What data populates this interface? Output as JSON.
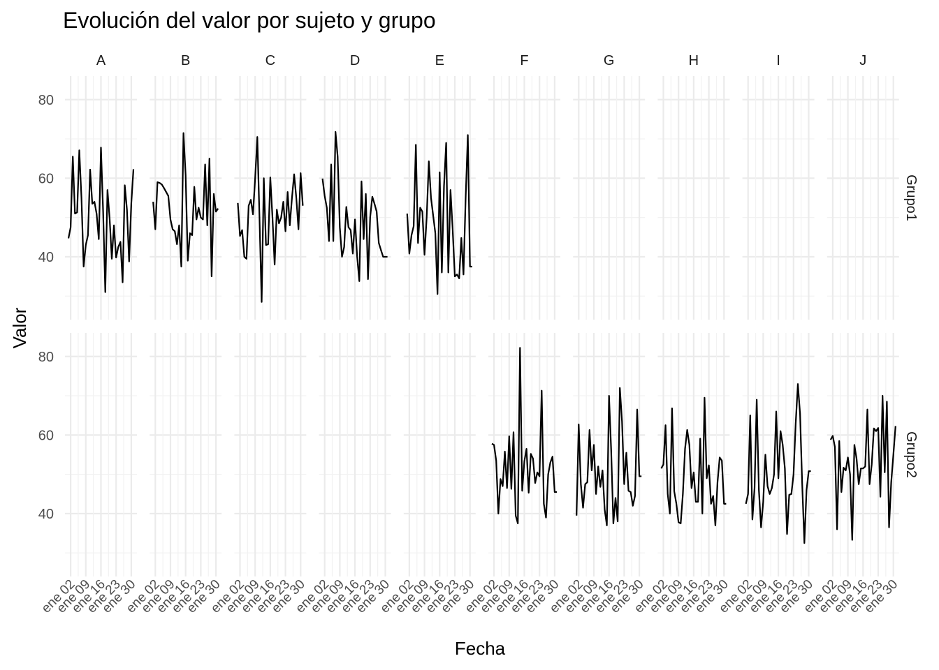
{
  "chart_data": {
    "type": "line",
    "title": "Evolución del valor por sujeto y grupo",
    "xlabel": "Fecha",
    "ylabel": "Valor",
    "facets": {
      "columns": [
        "A",
        "B",
        "C",
        "D",
        "E",
        "F",
        "G",
        "H",
        "I",
        "J"
      ],
      "rows": [
        "Grupo1",
        "Grupo2"
      ]
    },
    "x_range": [
      "ene 01",
      "ene 31"
    ],
    "x_tick_labels": [
      "ene 02",
      "ene 09",
      "ene 16",
      "ene 23",
      "ene 30"
    ],
    "x_tick_days": [
      2,
      9,
      16,
      23,
      30
    ],
    "ylim": [
      24,
      86
    ],
    "y_ticks": [
      40,
      60,
      80
    ],
    "grid": true,
    "legend": "none",
    "series": [
      {
        "subject": "A",
        "group": "Grupo1",
        "x_days": [
          1,
          2,
          3,
          4,
          5,
          6,
          7,
          8,
          9,
          10,
          11,
          12,
          13,
          14,
          15,
          16,
          17,
          18,
          19,
          20,
          21,
          22,
          23,
          24,
          25,
          26,
          27,
          28,
          29,
          30,
          31
        ],
        "values": [
          44.7,
          47.5,
          65.5,
          51,
          51.3,
          67.1,
          55,
          37.5,
          43,
          45.5,
          62.2,
          53.5,
          54,
          50.9,
          44.5,
          67.8,
          51.5,
          31,
          57,
          49.8,
          39.5,
          48,
          39.8,
          42.5,
          43.8,
          33.5,
          58.2,
          52,
          38.8,
          53.5,
          62.3
        ]
      },
      {
        "subject": "B",
        "group": "Grupo1",
        "x_days": [
          1,
          2,
          3,
          4,
          5,
          6,
          7,
          8,
          9,
          10,
          11,
          12,
          13,
          14,
          15,
          16,
          17,
          18,
          19,
          20,
          21,
          22,
          23,
          24,
          25,
          26,
          27,
          28,
          29,
          30,
          31
        ],
        "values": [
          54,
          47,
          59,
          58.8,
          58.4,
          57.5,
          56.5,
          55.5,
          49.5,
          47,
          46.5,
          43.2,
          48,
          37.5,
          71.5,
          60.8,
          39,
          46,
          45.5,
          57.8,
          49.5,
          52.5,
          50,
          49.5,
          63.5,
          48,
          65,
          35,
          56,
          51.5,
          52.3
        ]
      },
      {
        "subject": "C",
        "group": "Grupo1",
        "x_days": [
          1,
          2,
          3,
          4,
          5,
          6,
          7,
          8,
          9,
          10,
          11,
          12,
          13,
          14,
          15,
          16,
          17,
          18,
          19,
          20,
          21,
          22,
          23,
          24,
          25,
          26,
          27,
          28,
          29,
          30,
          31
        ],
        "values": [
          53.7,
          45.3,
          46.8,
          40,
          39.5,
          53,
          54.5,
          50.8,
          60,
          70.5,
          50,
          28.5,
          60,
          43,
          43.2,
          60.2,
          50,
          38,
          52,
          48.5,
          50,
          54,
          46.5,
          56.5,
          48,
          55,
          61,
          55,
          47,
          61.3,
          53
        ]
      },
      {
        "subject": "D",
        "group": "Grupo1",
        "x_days": [
          1,
          2,
          3,
          4,
          5,
          6,
          7,
          8,
          9,
          10,
          11,
          12,
          13,
          14,
          15,
          16,
          17,
          18,
          19,
          20,
          21,
          22,
          23,
          24,
          25,
          26,
          27,
          28,
          29,
          30,
          31
        ],
        "values": [
          59.9,
          55.5,
          52.5,
          44,
          63.5,
          44,
          71.8,
          65.5,
          47.5,
          40,
          42.5,
          52.7,
          47.5,
          46.8,
          40.8,
          49.5,
          40,
          33.8,
          59.2,
          44.5,
          56,
          34.3,
          50,
          55.3,
          53.5,
          51.5,
          43.5,
          41.7,
          40,
          40,
          40
        ]
      },
      {
        "subject": "E",
        "group": "Grupo1",
        "x_days": [
          1,
          2,
          3,
          4,
          5,
          6,
          7,
          8,
          9,
          10,
          11,
          12,
          13,
          14,
          15,
          16,
          17,
          18,
          19,
          20,
          21,
          22,
          23,
          24,
          25,
          26,
          27,
          28,
          29,
          30,
          31
        ],
        "values": [
          51,
          40.8,
          45.5,
          47.8,
          68.5,
          43.5,
          52.5,
          51.5,
          40.5,
          50,
          64.3,
          55,
          50.5,
          46,
          30.5,
          61.5,
          36,
          58,
          69,
          36,
          57,
          47,
          35,
          35.5,
          34.5,
          44.8,
          35.5,
          55,
          71,
          37.5,
          37.5
        ]
      },
      {
        "subject": "F",
        "group": "Grupo2",
        "x_days": [
          1,
          2,
          3,
          4,
          5,
          6,
          7,
          8,
          9,
          10,
          11,
          12,
          13,
          14,
          15,
          16,
          17,
          18,
          19,
          20,
          21,
          22,
          23,
          24,
          25,
          26,
          27,
          28,
          29,
          30,
          31
        ],
        "values": [
          57.8,
          57.5,
          53.5,
          40,
          48.8,
          47,
          55.8,
          46.5,
          59.7,
          46.3,
          60.7,
          39.5,
          37.5,
          82.2,
          45.8,
          53.3,
          56.5,
          45.3,
          55.2,
          54,
          47.8,
          50.5,
          49.5,
          71.3,
          42.5,
          39,
          50,
          53,
          54.5,
          45.5,
          45.5
        ]
      },
      {
        "subject": "G",
        "group": "Grupo2",
        "x_days": [
          1,
          2,
          3,
          4,
          5,
          6,
          7,
          8,
          9,
          10,
          11,
          12,
          13,
          14,
          15,
          16,
          17,
          18,
          19,
          20,
          21,
          22,
          23,
          24,
          25,
          26,
          27,
          28,
          29,
          30,
          31
        ],
        "values": [
          39.5,
          62.7,
          47.5,
          41.5,
          47.5,
          48,
          61.3,
          51,
          57.5,
          45,
          52,
          46.8,
          51,
          41,
          37,
          70,
          56,
          37.5,
          44,
          38,
          72,
          63.5,
          47.5,
          55.5,
          45.8,
          45.5,
          42,
          44.5,
          66.5,
          49.5,
          49.5
        ]
      },
      {
        "subject": "H",
        "group": "Grupo2",
        "x_days": [
          1,
          2,
          3,
          4,
          5,
          6,
          7,
          8,
          9,
          10,
          11,
          12,
          13,
          14,
          15,
          16,
          17,
          18,
          19,
          20,
          21,
          22,
          23,
          24,
          25,
          26,
          27,
          28,
          29,
          30,
          31
        ],
        "values": [
          51.5,
          52.5,
          62.5,
          45,
          40,
          66.8,
          45.7,
          42.5,
          37.8,
          37.5,
          45,
          56.5,
          61.3,
          57.5,
          46.5,
          50.5,
          43,
          43,
          59.1,
          40,
          69.5,
          49,
          52.3,
          42.5,
          44.5,
          37,
          48,
          54.3,
          53.5,
          42.5,
          42.5
        ]
      },
      {
        "subject": "I",
        "group": "Grupo2",
        "x_days": [
          1,
          2,
          3,
          4,
          5,
          6,
          7,
          8,
          9,
          10,
          11,
          12,
          13,
          14,
          15,
          16,
          17,
          18,
          19,
          20,
          21,
          22,
          23,
          24,
          25,
          26,
          27,
          28,
          29,
          30,
          31
        ],
        "values": [
          42.5,
          45,
          65,
          38.5,
          46.5,
          69,
          46,
          36.5,
          43,
          55,
          47,
          45,
          46.5,
          50,
          66,
          49,
          61,
          57.5,
          51.5,
          34.8,
          44.8,
          45,
          50,
          63,
          73,
          65.5,
          47.5,
          32.5,
          46,
          50.8,
          50.8
        ]
      },
      {
        "subject": "J",
        "group": "Grupo2",
        "x_days": [
          1,
          2,
          3,
          4,
          5,
          6,
          7,
          8,
          9,
          10,
          11,
          12,
          13,
          14,
          15,
          16,
          17,
          18,
          19,
          20,
          21,
          22,
          23,
          24,
          25,
          26,
          27,
          28,
          29,
          30,
          31
        ],
        "values": [
          58.8,
          59.8,
          57,
          36,
          58.5,
          45.5,
          51.7,
          51,
          54.3,
          50,
          33.3,
          57.5,
          54,
          47.5,
          51.5,
          51.5,
          52,
          66.5,
          47.5,
          52.5,
          61.7,
          61,
          61.8,
          44.3,
          70,
          50.5,
          68.5,
          36.5,
          48,
          55,
          62.3
        ]
      }
    ]
  }
}
